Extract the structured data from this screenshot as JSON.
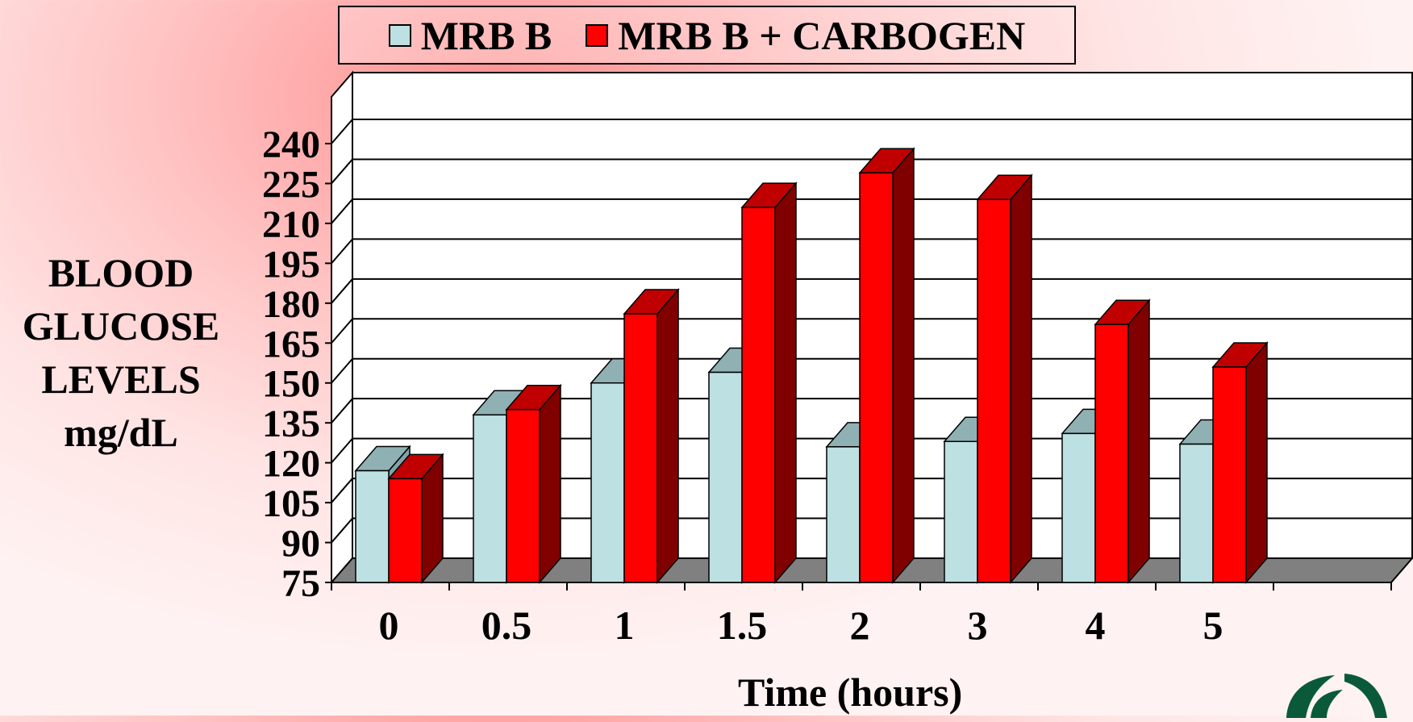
{
  "chart_data": {
    "type": "bar",
    "title": "",
    "categories": [
      "0",
      "0.5",
      "1",
      "1.5",
      "2",
      "3",
      "4",
      "5"
    ],
    "series": [
      {
        "name": "MRB B",
        "values": [
          117,
          138,
          150,
          154,
          126,
          128,
          131,
          127
        ],
        "color": "#bde0e2"
      },
      {
        "name": "MRB B + CARBOGEN",
        "values": [
          114,
          140,
          176,
          216,
          229,
          219,
          172,
          156
        ],
        "color": "#ff0000"
      }
    ],
    "ylabel_lines": [
      "BLOOD",
      "GLUCOSE",
      "LEVELS",
      "mg/dL"
    ],
    "xlabel": "Time (hours)",
    "ylim": [
      75,
      240
    ],
    "yticks": [
      75,
      90,
      105,
      120,
      135,
      150,
      165,
      180,
      195,
      210,
      225,
      240
    ],
    "grid": true,
    "legend_position": "top-center",
    "style": "3d-bar"
  }
}
